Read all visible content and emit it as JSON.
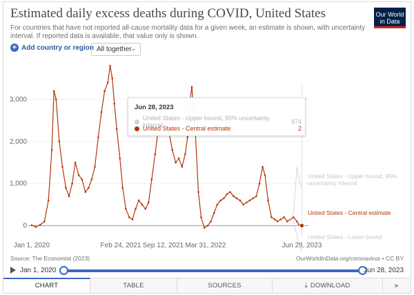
{
  "header": {
    "title": "Estimated daily excess deaths during COVID, United States",
    "subtitle": "For countries that have not reported all-cause mortality data for a given week, an estimate is shown, with uncertainty interval. If reported data is available, that value only is shown.",
    "logo_line1": "Our World",
    "logo_line2": "in Data"
  },
  "controls": {
    "add_country_label": "Add country or region",
    "dropdown_value": "All together"
  },
  "tooltip": {
    "date": "Jun 28, 2023",
    "rows": [
      {
        "label": "United States - Upper bound, 95% uncertainty interval",
        "value": "874",
        "color": "#cfcfcf"
      },
      {
        "label": "United States - Central estimate",
        "value": "2",
        "color": "#b13507"
      }
    ]
  },
  "series_labels": {
    "upper": "United States - Upper bound, 95% uncertainty interval",
    "central": "United States - Central estimate",
    "lower": "United States - Lower bound"
  },
  "footer": {
    "source": "Source: The Economist (2023)",
    "license": "OurWorldInData.org/coronavirus • CC BY",
    "start_date": "Jan 1, 2020",
    "end_date": "Jun 28, 2023"
  },
  "tabs": [
    {
      "label": "CHART",
      "active": true
    },
    {
      "label": "TABLE",
      "active": false
    },
    {
      "label": "SOURCES",
      "active": false
    },
    {
      "label": "DOWNLOAD",
      "active": false
    }
  ],
  "colors": {
    "central": "#b13507",
    "bound": "#d6d6d6",
    "accent": "#3a69c3"
  },
  "chart_data": {
    "type": "line",
    "title": "Estimated daily excess deaths during COVID, United States",
    "xlabel": "",
    "ylabel": "",
    "x_range": [
      "2019-12-16",
      "2023-07-16"
    ],
    "ylim": [
      -400,
      4000
    ],
    "y_ticks": [
      0,
      1000,
      2000,
      3000
    ],
    "y_tick_labels": [
      "0",
      "1,000",
      "2,000",
      "3,000"
    ],
    "x_ticks": [
      "2020-01-01",
      "2021-02-24",
      "2021-09-12",
      "2022-03-31",
      "2023-06-28"
    ],
    "x_tick_labels": [
      "Jan 1, 2020",
      "Feb 24, 2021",
      "Sep 12, 2021",
      "Mar 31, 2022",
      "Jun 28, 2023"
    ],
    "grid": "horizontal",
    "series": [
      {
        "name": "United States - Central estimate",
        "x": [
          "2020-01-01",
          "2020-01-20",
          "2020-02-10",
          "2020-03-01",
          "2020-03-20",
          "2020-04-05",
          "2020-04-15",
          "2020-04-25",
          "2020-05-10",
          "2020-05-25",
          "2020-06-10",
          "2020-06-25",
          "2020-07-10",
          "2020-07-25",
          "2020-08-10",
          "2020-08-25",
          "2020-09-10",
          "2020-09-25",
          "2020-10-10",
          "2020-10-25",
          "2020-11-10",
          "2020-11-25",
          "2020-12-10",
          "2020-12-25",
          "2021-01-05",
          "2021-01-15",
          "2021-01-25",
          "2021-02-05",
          "2021-02-20",
          "2021-03-05",
          "2021-03-20",
          "2021-04-05",
          "2021-04-20",
          "2021-05-05",
          "2021-05-20",
          "2021-06-05",
          "2021-06-20",
          "2021-07-05",
          "2021-07-20",
          "2021-08-05",
          "2021-08-20",
          "2021-09-05",
          "2021-09-15",
          "2021-09-25",
          "2021-10-10",
          "2021-10-25",
          "2021-11-10",
          "2021-11-25",
          "2021-12-10",
          "2021-12-25",
          "2022-01-05",
          "2022-01-15",
          "2022-01-25",
          "2022-02-10",
          "2022-02-25",
          "2022-03-10",
          "2022-03-25",
          "2022-04-10",
          "2022-04-25",
          "2022-05-10",
          "2022-05-25",
          "2022-06-10",
          "2022-06-25",
          "2022-07-10",
          "2022-07-25",
          "2022-08-10",
          "2022-08-25",
          "2022-09-10",
          "2022-09-25",
          "2022-10-10",
          "2022-10-25",
          "2022-11-10",
          "2022-11-25",
          "2022-12-10",
          "2022-12-25",
          "2023-01-05",
          "2023-01-20",
          "2023-02-05",
          "2023-02-20",
          "2023-03-05",
          "2023-03-20",
          "2023-04-05",
          "2023-04-20",
          "2023-05-05",
          "2023-05-20",
          "2023-06-05",
          "2023-06-15",
          "2023-06-28"
        ],
        "y": [
          10,
          -30,
          20,
          100,
          600,
          1800,
          3200,
          3000,
          2000,
          1400,
          900,
          700,
          1000,
          1500,
          1200,
          1100,
          800,
          900,
          1100,
          1400,
          2100,
          2700,
          3200,
          3400,
          3800,
          3500,
          2900,
          2300,
          1600,
          900,
          400,
          200,
          150,
          400,
          600,
          500,
          400,
          550,
          1100,
          1700,
          2300,
          2700,
          2800,
          2500,
          2200,
          1800,
          1500,
          1600,
          1400,
          1700,
          2100,
          2900,
          3300,
          2300,
          800,
          200,
          -50,
          0,
          100,
          300,
          500,
          600,
          650,
          750,
          800,
          700,
          650,
          600,
          500,
          550,
          600,
          650,
          700,
          1000,
          1400,
          1200,
          600,
          200,
          150,
          100,
          150,
          200,
          100,
          150,
          200,
          100,
          20,
          2
        ]
      },
      {
        "name": "United States - Upper bound, 95% uncertainty interval",
        "x": [
          "2023-05-05",
          "2023-05-20",
          "2023-06-05",
          "2023-06-15",
          "2023-06-28"
        ],
        "y": [
          150,
          300,
          1400,
          1100,
          874
        ]
      },
      {
        "name": "United States - Lower bound",
        "x": [
          "2023-05-05",
          "2023-05-20",
          "2023-06-05",
          "2023-06-15",
          "2023-06-28"
        ],
        "y": [
          150,
          100,
          -250,
          -450,
          -600
        ]
      }
    ]
  }
}
